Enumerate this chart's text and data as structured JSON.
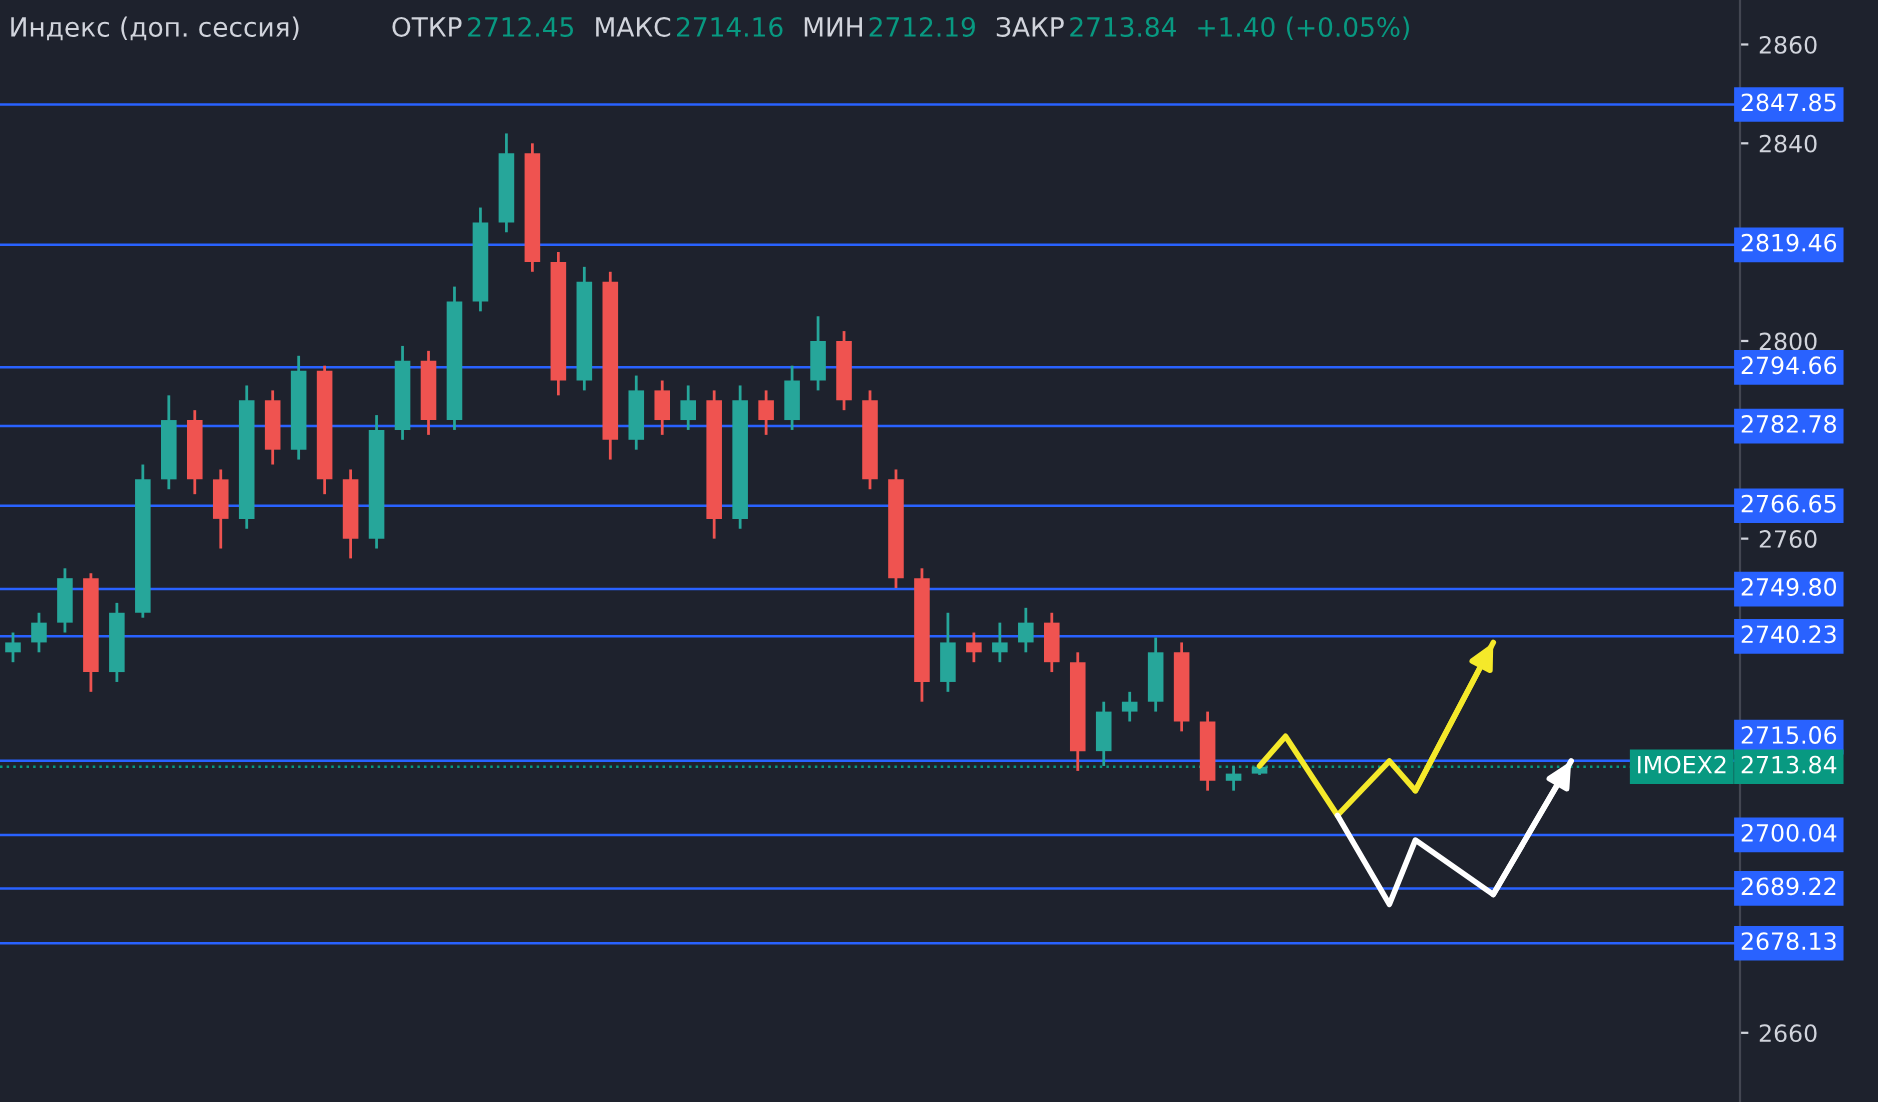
{
  "chart_data": {
    "type": "candlestick",
    "title": "Индекс (доп. сессия)",
    "annotations": [
      "ОТКР",
      "2712.45",
      "МАКС",
      "2714.16",
      "МИН",
      "2712.19",
      "ЗАКР",
      "2713.84",
      "+1.40 (+0.05%)"
    ],
    "categories": [
      null,
      null,
      null,
      null,
      null,
      null,
      null,
      null,
      null,
      null,
      null,
      null,
      null,
      null,
      null,
      null,
      null,
      null,
      null,
      null,
      null,
      null,
      null,
      null,
      null,
      null,
      null,
      null,
      null,
      null,
      null,
      null,
      null,
      null,
      null,
      null,
      null,
      null,
      null,
      null,
      null,
      null,
      null,
      null,
      null,
      null,
      null,
      null,
      null,
      null,
      null,
      null,
      null,
      null,
      null,
      null,
      null,
      null,
      null,
      null,
      null,
      null,
      null,
      null,
      null,
      null,
      null
    ],
    "ohlc": [
      [
        2737,
        2741,
        2735,
        2739
      ],
      [
        2739,
        2745,
        2737,
        2743
      ],
      [
        2743,
        2754,
        2741,
        2752
      ],
      [
        2752,
        2753,
        2729,
        2733
      ],
      [
        2733,
        2747,
        2731,
        2745
      ],
      [
        2745,
        2775,
        2744,
        2772
      ],
      [
        2772,
        2789,
        2770,
        2784
      ],
      [
        2784,
        2786,
        2769,
        2772
      ],
      [
        2772,
        2774,
        2758,
        2764
      ],
      [
        2764,
        2791,
        2762,
        2788
      ],
      [
        2788,
        2790,
        2775,
        2778
      ],
      [
        2778,
        2797,
        2776,
        2794
      ],
      [
        2794,
        2795,
        2769,
        2772
      ],
      [
        2772,
        2774,
        2756,
        2760
      ],
      [
        2760,
        2785,
        2758,
        2782
      ],
      [
        2782,
        2799,
        2780,
        2796
      ],
      [
        2796,
        2798,
        2781,
        2784
      ],
      [
        2784,
        2811,
        2782,
        2808
      ],
      [
        2808,
        2827,
        2806,
        2824
      ],
      [
        2824,
        2842,
        2822,
        2838
      ],
      [
        2838,
        2840,
        2814,
        2816
      ],
      [
        2816,
        2818,
        2789,
        2792
      ],
      [
        2792,
        2815,
        2790,
        2812
      ],
      [
        2812,
        2814,
        2776,
        2780
      ],
      [
        2780,
        2793,
        2778,
        2790
      ],
      [
        2790,
        2792,
        2781,
        2784
      ],
      [
        2784,
        2791,
        2782,
        2788
      ],
      [
        2788,
        2790,
        2760,
        2764
      ],
      [
        2764,
        2791,
        2762,
        2788
      ],
      [
        2788,
        2790,
        2781,
        2784
      ],
      [
        2784,
        2795,
        2782,
        2792
      ],
      [
        2792,
        2805,
        2790,
        2800
      ],
      [
        2800,
        2802,
        2786,
        2788
      ],
      [
        2788,
        2790,
        2770,
        2772
      ],
      [
        2772,
        2774,
        2750,
        2752
      ],
      [
        2752,
        2754,
        2727,
        2731
      ],
      [
        2731,
        2745,
        2729,
        2739
      ],
      [
        2739,
        2741,
        2735,
        2737
      ],
      [
        2737,
        2743,
        2735,
        2739
      ],
      [
        2739,
        2746,
        2737,
        2743
      ],
      [
        2743,
        2745,
        2733,
        2735
      ],
      [
        2735,
        2737,
        2713,
        2717
      ],
      [
        2717,
        2727,
        2714,
        2725
      ],
      [
        2725,
        2729,
        2723,
        2727
      ],
      [
        2727,
        2740,
        2725,
        2737
      ],
      [
        2737,
        2739,
        2721,
        2723
      ],
      [
        2723,
        2725,
        2709,
        2711
      ],
      [
        2711,
        2714,
        2709,
        2712.45
      ],
      [
        2712.45,
        2714.16,
        2712.19,
        2713.84
      ],
      null,
      null,
      null,
      null,
      null,
      null,
      null,
      null,
      null,
      null,
      null,
      null,
      null,
      null,
      null,
      null,
      null,
      null
    ],
    "colors": [
      "#26a69a",
      "#26a69a",
      "#26a69a",
      "#ef5350",
      "#26a69a",
      "#26a69a",
      "#26a69a",
      "#ef5350",
      "#ef5350",
      "#26a69a",
      "#ef5350",
      "#26a69a",
      "#ef5350",
      "#ef5350",
      "#26a69a",
      "#26a69a",
      "#ef5350",
      "#26a69a",
      "#26a69a",
      "#26a69a",
      "#ef5350",
      "#ef5350",
      "#26a69a",
      "#ef5350",
      "#26a69a",
      "#ef5350",
      "#26a69a",
      "#ef5350",
      "#26a69a",
      "#ef5350",
      "#26a69a",
      "#26a69a",
      "#ef5350",
      "#ef5350",
      "#ef5350",
      "#ef5350",
      "#26a69a",
      "#ef5350",
      "#26a69a",
      "#26a69a",
      "#ef5350",
      "#ef5350",
      "#26a69a",
      "#26a69a",
      "#26a69a",
      "#ef5350",
      "#ef5350",
      "#26a69a",
      "#26a69a",
      null,
      null,
      null,
      null,
      null,
      null,
      null,
      null,
      null,
      null,
      null,
      null,
      null,
      null,
      null,
      null,
      null,
      null
    ],
    "series": [
      {
        "type": "line",
        "color": "#f5e92a",
        "values": [
          null,
          null,
          null,
          null,
          null,
          null,
          null,
          null,
          null,
          null,
          null,
          null,
          null,
          null,
          null,
          null,
          null,
          null,
          null,
          null,
          null,
          null,
          null,
          null,
          null,
          null,
          null,
          null,
          null,
          null,
          null,
          null,
          null,
          null,
          null,
          null,
          null,
          null,
          null,
          null,
          null,
          null,
          null,
          null,
          null,
          null,
          null,
          null,
          2714,
          2720,
          null,
          2704,
          null,
          2715,
          2709,
          null,
          null,
          2739,
          null,
          null,
          null,
          null,
          null,
          null,
          null,
          null,
          null
        ]
      },
      {
        "type": "line",
        "color": "#ffffff",
        "values": [
          null,
          null,
          null,
          null,
          null,
          null,
          null,
          null,
          null,
          null,
          null,
          null,
          null,
          null,
          null,
          null,
          null,
          null,
          null,
          null,
          null,
          null,
          null,
          null,
          null,
          null,
          null,
          null,
          null,
          null,
          null,
          null,
          null,
          null,
          null,
          null,
          null,
          null,
          null,
          null,
          null,
          null,
          null,
          null,
          null,
          null,
          null,
          null,
          null,
          null,
          null,
          2704,
          null,
          2686,
          2699,
          null,
          null,
          2688,
          null,
          null,
          2715,
          null,
          null,
          null,
          null,
          null,
          null
        ]
      }
    ],
    "ylim": [
      2646,
      2869
    ],
    "yticks": [
      2660,
      2760,
      2800,
      2840,
      2860
    ],
    "grid": false,
    "legend": false,
    "ref_lines": [
      {
        "axis": "y",
        "value": 2847.85,
        "label": "2847.85",
        "color": "#2962ff"
      },
      {
        "axis": "y",
        "value": 2819.46,
        "label": "2819.46",
        "color": "#2962ff"
      },
      {
        "axis": "y",
        "value": 2794.66,
        "label": "2794.66",
        "color": "#2962ff"
      },
      {
        "axis": "y",
        "value": 2782.78,
        "label": "2782.78",
        "color": "#2962ff"
      },
      {
        "axis": "y",
        "value": 2766.65,
        "label": "2766.65",
        "color": "#2962ff"
      },
      {
        "axis": "y",
        "value": 2749.8,
        "label": "2749.80",
        "color": "#2962ff"
      },
      {
        "axis": "y",
        "value": 2740.23,
        "label": "2740.23",
        "color": "#2962ff"
      },
      {
        "axis": "y",
        "value": 2715.06,
        "label": "2715.06",
        "color": "#2962ff"
      },
      {
        "axis": "y",
        "value": 2713.84,
        "label": "IMOEX2",
        "color": "#089981",
        "line_style": "dotted"
      },
      {
        "axis": "y",
        "value": 2700.04,
        "label": "2700.04",
        "color": "#2962ff"
      },
      {
        "axis": "y",
        "value": 2689.22,
        "label": "2689.22",
        "color": "#2962ff"
      },
      {
        "axis": "y",
        "value": 2678.13,
        "label": "2678.13",
        "color": "#2962ff"
      }
    ]
  }
}
